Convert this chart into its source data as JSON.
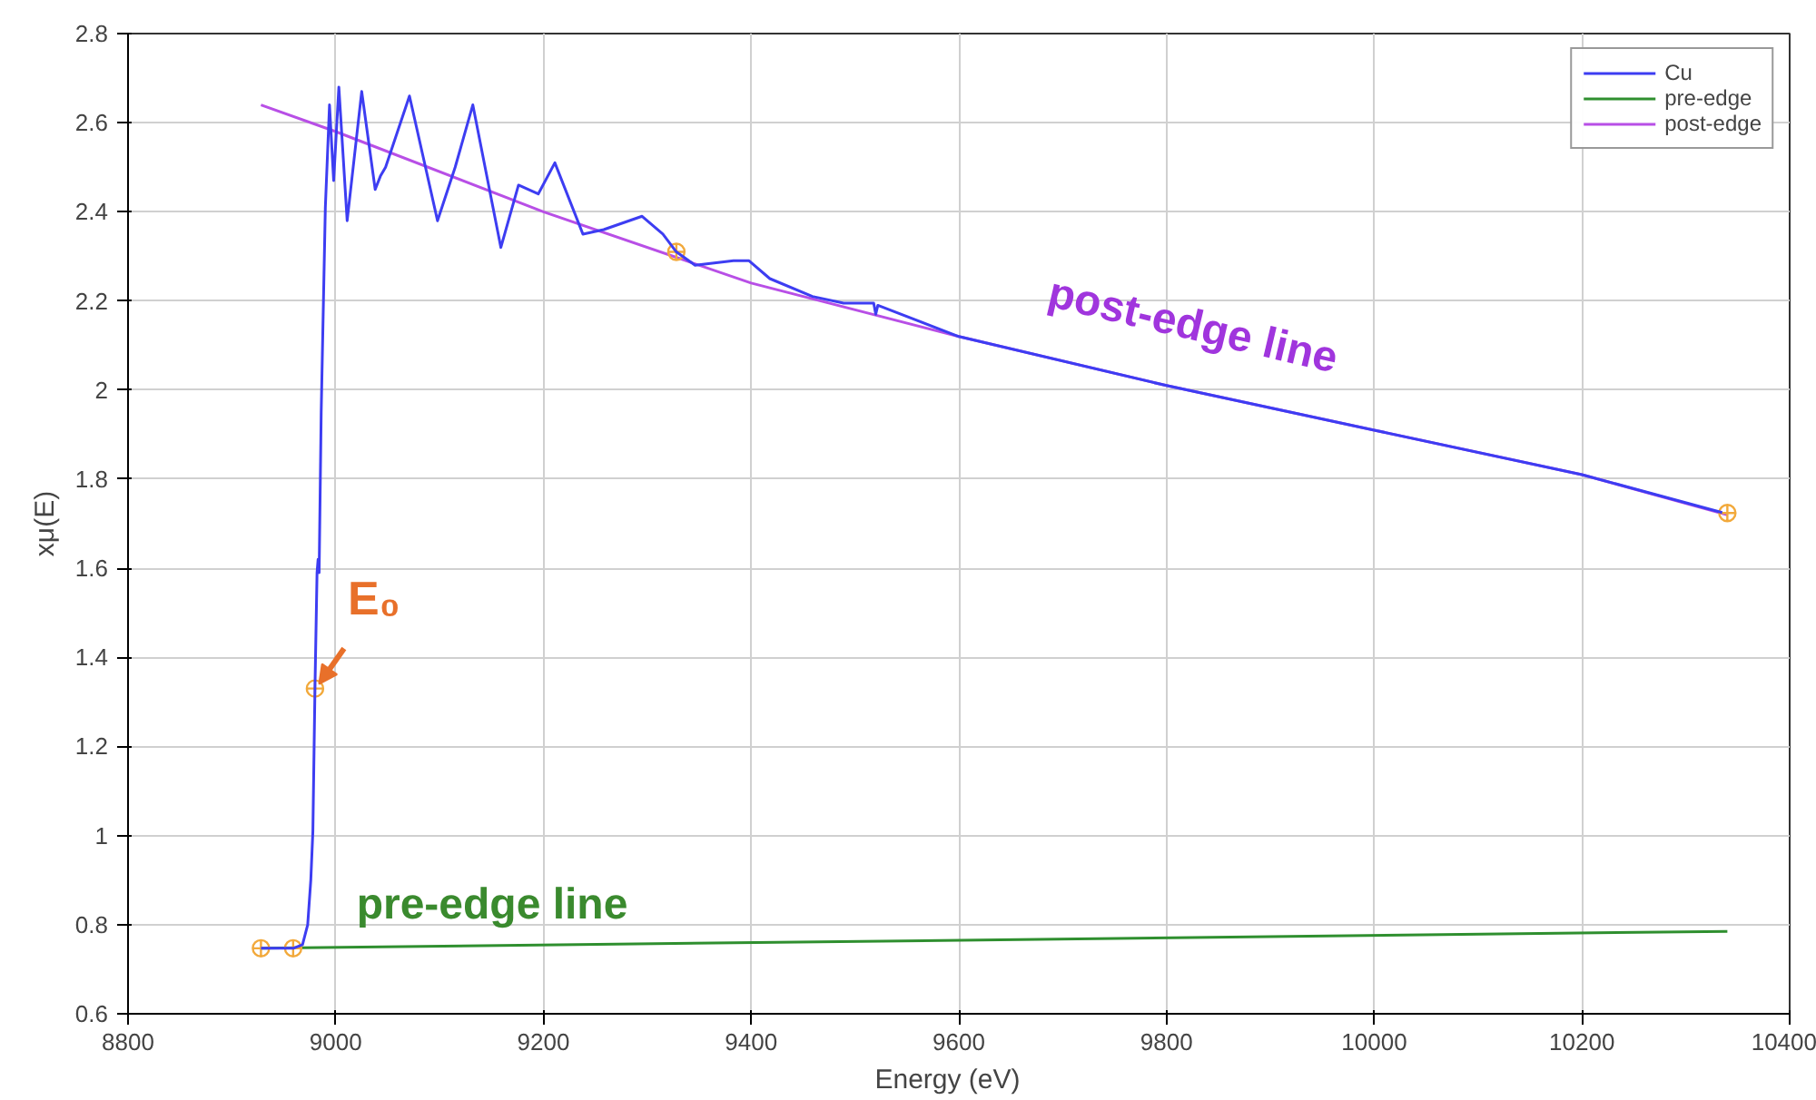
{
  "chart_data": {
    "type": "line",
    "xlabel": "Energy    (eV)",
    "ylabel": "xμ(E)",
    "xlim": [
      8800,
      10400
    ],
    "xticks": [
      8800,
      9000,
      9200,
      9400,
      9600,
      9800,
      10000,
      10200,
      10400
    ],
    "ylim": [
      0.6,
      2.8
    ],
    "yticks": [
      0.6,
      0.8,
      1,
      1.2,
      1.4,
      1.6,
      1.8,
      2,
      2.2,
      2.4,
      2.6,
      2.8
    ],
    "grid": true,
    "legend": "top right",
    "line_style": "solid",
    "series": [
      {
        "name": "Cu",
        "color": "#3d3df2",
        "x": [
          8928,
          8959,
          8968,
          8973,
          8976,
          8978,
          8980,
          8982,
          8983,
          8984,
          8986,
          8990,
          8994,
          8998,
          9003,
          9011,
          9025,
          9038,
          9043,
          9048,
          9071,
          9098,
          9115,
          9132,
          9159,
          9176,
          9195,
          9211,
          9238,
          9258,
          9295,
          9315,
          9328,
          9346,
          9383,
          9398,
          9418,
          9459,
          9489,
          9518,
          9520,
          9522,
          9600,
          9800,
          10000,
          10200,
          10335
        ],
        "values": [
          0.747,
          0.747,
          0.755,
          0.8,
          0.9,
          1.01,
          1.33,
          1.59,
          1.62,
          1.59,
          1.95,
          2.41,
          2.64,
          2.47,
          2.68,
          2.38,
          2.67,
          2.45,
          2.48,
          2.5,
          2.66,
          2.38,
          2.5,
          2.64,
          2.32,
          2.46,
          2.44,
          2.51,
          2.35,
          2.36,
          2.39,
          2.35,
          2.31,
          2.28,
          2.29,
          2.29,
          2.25,
          2.21,
          2.195,
          2.195,
          2.17,
          2.19,
          2.12,
          2.01,
          1.91,
          1.81,
          1.725
        ]
      },
      {
        "name": "pre-edge",
        "color": "#2f8f2f",
        "x": [
          8928,
          10340
        ],
        "values": [
          0.747,
          0.785
        ]
      },
      {
        "name": "post-edge",
        "color": "#b84fe6",
        "x": [
          8928,
          9000,
          9200,
          9400,
          9600,
          9800,
          10000,
          10200,
          10340
        ],
        "values": [
          2.64,
          2.58,
          2.4,
          2.24,
          2.12,
          2.01,
          1.91,
          1.81,
          1.72
        ]
      },
      {
        "type": "scatter",
        "color": "#f2a93b",
        "x": [
          8928,
          8959,
          8980,
          9328,
          10340
        ],
        "values": [
          0.747,
          0.747,
          1.33,
          2.31,
          1.724
        ]
      }
    ],
    "annotations": [
      {
        "text": "E₀",
        "x": 8980,
        "y": 1.33
      },
      "pre-edge line",
      "post-edge line"
    ]
  }
}
